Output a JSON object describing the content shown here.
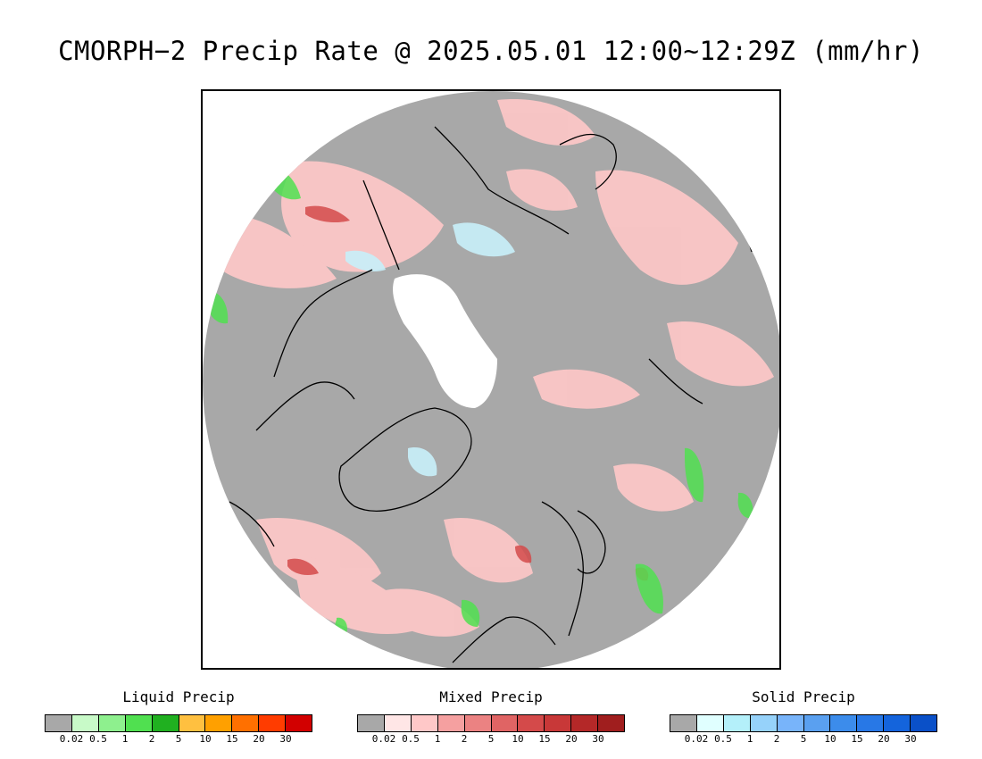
{
  "title": "CMORPH−2 Precip Rate @ 2025.05.01 12:00~12:29Z (mm/hr)",
  "map": {
    "projection": "north-polar-stereographic",
    "background_no_precip": "#a8a8a8",
    "icecap_color": "#ffffff",
    "coastline_color": "#000000"
  },
  "legends": [
    {
      "id": "liquid",
      "title": "Liquid Precip",
      "colors": [
        "#a8a8a8",
        "#c8fac8",
        "#8ef08e",
        "#50e050",
        "#20b020",
        "#ffc040",
        "#ffa000",
        "#ff7000",
        "#ff3c00",
        "#d20000"
      ],
      "ticks": [
        "0.02",
        "0.5",
        "1",
        "2",
        "5",
        "10",
        "15",
        "20",
        "30"
      ]
    },
    {
      "id": "mixed",
      "title": "Mixed Precip",
      "colors": [
        "#a8a8a8",
        "#ffe6e6",
        "#ffc8c8",
        "#f5a0a0",
        "#eb8282",
        "#e06464",
        "#d44a4a",
        "#c83838",
        "#b42828",
        "#a01e1e"
      ],
      "ticks": [
        "0.02",
        "0.5",
        "1",
        "2",
        "5",
        "10",
        "15",
        "20",
        "30"
      ]
    },
    {
      "id": "solid",
      "title": "Solid Precip",
      "colors": [
        "#a8a8a8",
        "#e0ffff",
        "#b4f0fa",
        "#96d2fa",
        "#78b4fa",
        "#5aa0f0",
        "#3c8ceb",
        "#2878e6",
        "#1464dc",
        "#0a50c8"
      ],
      "ticks": [
        "0.02",
        "0.5",
        "1",
        "2",
        "5",
        "10",
        "15",
        "20",
        "30"
      ]
    }
  ]
}
